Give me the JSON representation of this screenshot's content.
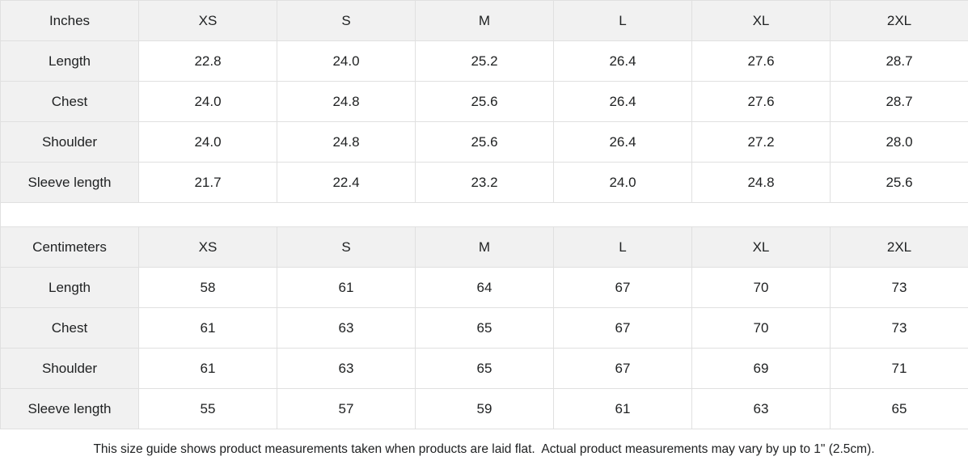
{
  "colors": {
    "header_background": "#f1f1f1",
    "cell_background": "#ffffff",
    "border": "#e0e0e0",
    "text": "#202223"
  },
  "chart_data": [
    {
      "type": "table",
      "title": "Inches",
      "columns": [
        "Inches",
        "XS",
        "S",
        "M",
        "L",
        "XL",
        "2XL"
      ],
      "rows": [
        [
          "Length",
          "22.8",
          "24.0",
          "25.2",
          "26.4",
          "27.6",
          "28.7"
        ],
        [
          "Chest",
          "24.0",
          "24.8",
          "25.6",
          "26.4",
          "27.6",
          "28.7"
        ],
        [
          "Shoulder",
          "24.0",
          "24.8",
          "25.6",
          "26.4",
          "27.2",
          "28.0"
        ],
        [
          "Sleeve length",
          "21.7",
          "22.4",
          "23.2",
          "24.0",
          "24.8",
          "25.6"
        ]
      ]
    },
    {
      "type": "table",
      "title": "Centimeters",
      "columns": [
        "Centimeters",
        "XS",
        "S",
        "M",
        "L",
        "XL",
        "2XL"
      ],
      "rows": [
        [
          "Length",
          "58",
          "61",
          "64",
          "67",
          "70",
          "73"
        ],
        [
          "Chest",
          "61",
          "63",
          "65",
          "67",
          "70",
          "73"
        ],
        [
          "Shoulder",
          "61",
          "63",
          "65",
          "67",
          "69",
          "71"
        ],
        [
          "Sleeve length",
          "55",
          "57",
          "59",
          "61",
          "63",
          "65"
        ]
      ]
    }
  ],
  "footer": {
    "note": "This size guide shows product measurements taken when products are laid flat.  Actual product measurements may vary by up to 1\" (2.5cm)."
  }
}
